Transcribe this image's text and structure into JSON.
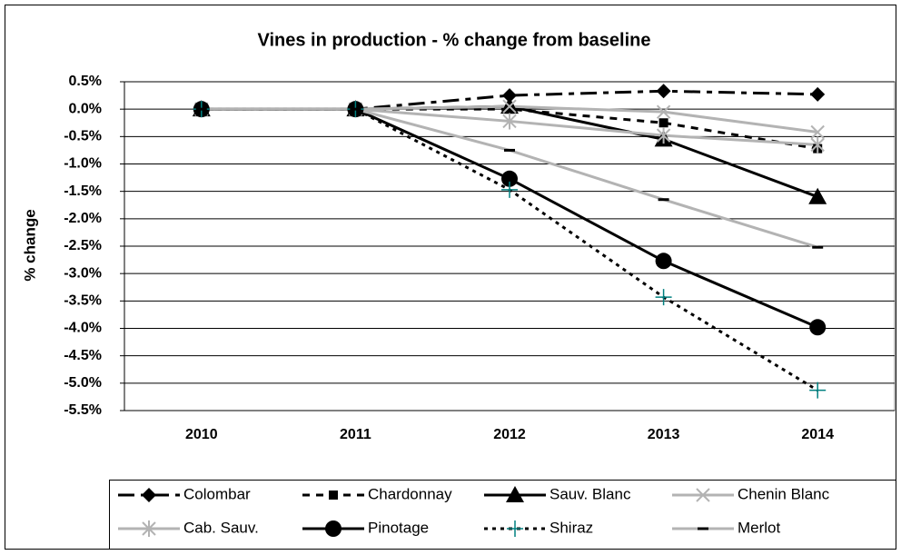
{
  "chart_data": {
    "type": "line",
    "title": "Vines in production - % change from baseline",
    "ylabel": "% change",
    "categories": [
      "2010",
      "2011",
      "2012",
      "2013",
      "2014"
    ],
    "ylim": [
      -5.5,
      0.5
    ],
    "yticks": [
      {
        "value": 0.5,
        "label": "0.5%"
      },
      {
        "value": 0,
        "label": "0.0%"
      },
      {
        "value": -0.5,
        "label": "-0.5%"
      },
      {
        "value": -1,
        "label": "-1.0%"
      },
      {
        "value": -1.5,
        "label": "-1.5%"
      },
      {
        "value": -2,
        "label": "-2.0%"
      },
      {
        "value": -2.5,
        "label": "-2.5%"
      },
      {
        "value": -3,
        "label": "-3.0%"
      },
      {
        "value": -3.5,
        "label": "-3.5%"
      },
      {
        "value": -4,
        "label": "-4.0%"
      },
      {
        "value": -4.5,
        "label": "-4.5%"
      },
      {
        "value": -5,
        "label": "-5.0%"
      },
      {
        "value": -5.5,
        "label": "-5.5%"
      }
    ],
    "grid": true,
    "legend": "bottom",
    "series": [
      {
        "name": "Colombar",
        "color": "#000000",
        "dash": "longdash",
        "marker": "diamond",
        "marker_color": "#000000",
        "values": [
          0,
          0,
          0.25,
          0.33,
          0.27
        ]
      },
      {
        "name": "Chardonnay",
        "color": "#000000",
        "dash": "dash",
        "marker": "square",
        "marker_color": "#000000",
        "values": [
          0,
          0,
          0.0,
          -0.25,
          -0.72
        ]
      },
      {
        "name": "Sauv. Blanc",
        "color": "#000000",
        "dash": "solid",
        "marker": "triangle",
        "marker_color": "#000000",
        "values": [
          0,
          0,
          0.05,
          -0.55,
          -1.6
        ]
      },
      {
        "name": "Chenin Blanc",
        "color": "#b3b3b3",
        "dash": "solid",
        "marker": "x",
        "marker_color": "#b3b3b3",
        "values": [
          0,
          0,
          0.05,
          -0.05,
          -0.42
        ]
      },
      {
        "name": "Cab. Sauv.",
        "color": "#b3b3b3",
        "dash": "solid",
        "marker": "star",
        "marker_color": "#b3b3b3",
        "values": [
          0,
          0,
          -0.22,
          -0.48,
          -0.65
        ]
      },
      {
        "name": "Pinotage",
        "color": "#000000",
        "dash": "solid",
        "marker": "circle",
        "marker_color": "#000000",
        "values": [
          0,
          0,
          -1.27,
          -2.77,
          -3.98
        ]
      },
      {
        "name": "Shiraz",
        "color": "#000000",
        "dash": "dot",
        "marker": "plus",
        "marker_color": "#008080",
        "values": [
          0,
          0,
          -1.47,
          -3.43,
          -5.13
        ]
      },
      {
        "name": "Merlot",
        "color": "#b3b3b3",
        "dash": "solid",
        "marker": "dash",
        "marker_color": "#000000",
        "values": [
          0,
          0,
          -0.75,
          -1.65,
          -2.52
        ]
      }
    ]
  }
}
